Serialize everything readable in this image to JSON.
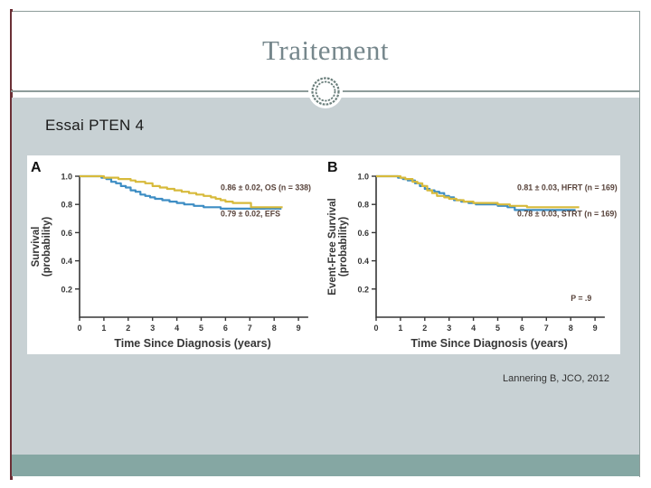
{
  "slide": {
    "title": "Traitement",
    "subtitle": "Essai PTEN 4",
    "citation": "Lannering B, JCO, 2012"
  },
  "theme": {
    "colors": {
      "accent_stripe": "#6b3036",
      "frame_line": "#8d9c9a",
      "band": "#c8d1d4",
      "footer": "#85a7a3",
      "title": "#76878c",
      "subtitle": "#1a1a1a",
      "citation": "#333333",
      "axis": "#363636",
      "annotation": "#57423a",
      "ornament": "#6b7f7c",
      "panel_bg": "#ffffff",
      "curve_yellow": "#d7ba3b",
      "curve_blue": "#3d8dc4"
    }
  },
  "chart_data": [
    {
      "type": "line",
      "subtype": "kaplan-meier-step",
      "panel_label": "A",
      "xlabel": "Time Since Diagnosis (years)",
      "ylabel_lines": [
        "Survival",
        "(probability)"
      ],
      "xlim": [
        0,
        9.4
      ],
      "ylim": [
        0,
        1.0
      ],
      "xticks": [
        0,
        1,
        2,
        3,
        4,
        5,
        6,
        7,
        8,
        9
      ],
      "yticks": [
        0.2,
        0.4,
        0.6,
        0.8,
        1.0
      ],
      "grid": false,
      "legend": "none",
      "annotations": [
        {
          "text": "0.86 ± 0.02, OS (n = 338)",
          "x": 5.8,
          "y": 0.9
        },
        {
          "text": "0.79 ± 0.02, EFS",
          "x": 5.8,
          "y": 0.715
        }
      ],
      "series": [
        {
          "name": "EFS",
          "color": "#3d8dc4",
          "points": [
            [
              0,
              1.0
            ],
            [
              0.8,
              1.0
            ],
            [
              0.9,
              0.99
            ],
            [
              1.1,
              0.98
            ],
            [
              1.3,
              0.96
            ],
            [
              1.5,
              0.95
            ],
            [
              1.7,
              0.93
            ],
            [
              1.9,
              0.92
            ],
            [
              2.1,
              0.9
            ],
            [
              2.3,
              0.89
            ],
            [
              2.5,
              0.87
            ],
            [
              2.7,
              0.86
            ],
            [
              2.9,
              0.85
            ],
            [
              3.1,
              0.84
            ],
            [
              3.4,
              0.83
            ],
            [
              3.7,
              0.82
            ],
            [
              4.0,
              0.81
            ],
            [
              4.3,
              0.8
            ],
            [
              4.7,
              0.79
            ],
            [
              5.1,
              0.78
            ],
            [
              5.8,
              0.77
            ],
            [
              8.3,
              0.77
            ]
          ]
        },
        {
          "name": "OS",
          "color": "#d7ba3b",
          "points": [
            [
              0,
              1.0
            ],
            [
              0.9,
              1.0
            ],
            [
              1.0,
              0.99
            ],
            [
              1.6,
              0.98
            ],
            [
              2.1,
              0.97
            ],
            [
              2.3,
              0.96
            ],
            [
              2.7,
              0.95
            ],
            [
              3.0,
              0.93
            ],
            [
              3.3,
              0.92
            ],
            [
              3.6,
              0.91
            ],
            [
              3.9,
              0.9
            ],
            [
              4.2,
              0.89
            ],
            [
              4.5,
              0.88
            ],
            [
              4.8,
              0.87
            ],
            [
              5.1,
              0.86
            ],
            [
              5.4,
              0.85
            ],
            [
              5.6,
              0.84
            ],
            [
              5.8,
              0.83
            ],
            [
              6.0,
              0.82
            ],
            [
              6.3,
              0.81
            ],
            [
              7.05,
              0.78
            ],
            [
              8.35,
              0.78
            ]
          ]
        }
      ]
    },
    {
      "type": "line",
      "subtype": "kaplan-meier-step",
      "panel_label": "B",
      "xlabel": "Time Since Diagnosis (years)",
      "ylabel_lines": [
        "Event-Free Survival",
        "(probability)"
      ],
      "xlim": [
        0,
        9.4
      ],
      "ylim": [
        0,
        1.0
      ],
      "xticks": [
        0,
        1,
        2,
        3,
        4,
        5,
        6,
        7,
        8,
        9
      ],
      "yticks": [
        0.2,
        0.4,
        0.6,
        0.8,
        1.0
      ],
      "grid": false,
      "legend": "none",
      "annotations": [
        {
          "text": "0.81 ± 0.03, HFRT (n = 169)",
          "x": 5.8,
          "y": 0.9
        },
        {
          "text": "0.78 ± 0.03, STRT (n = 169)",
          "x": 5.8,
          "y": 0.715
        },
        {
          "text": "P = .9",
          "x": 8.0,
          "y": 0.115
        }
      ],
      "series": [
        {
          "name": "STRT",
          "color": "#3d8dc4",
          "points": [
            [
              0,
              1.0
            ],
            [
              0.7,
              1.0
            ],
            [
              0.9,
              0.99
            ],
            [
              1.1,
              0.98
            ],
            [
              1.3,
              0.97
            ],
            [
              1.6,
              0.95
            ],
            [
              1.8,
              0.93
            ],
            [
              2.0,
              0.91
            ],
            [
              2.2,
              0.9
            ],
            [
              2.4,
              0.89
            ],
            [
              2.6,
              0.88
            ],
            [
              2.8,
              0.86
            ],
            [
              3.0,
              0.85
            ],
            [
              3.2,
              0.83
            ],
            [
              3.5,
              0.82
            ],
            [
              3.8,
              0.81
            ],
            [
              4.1,
              0.8
            ],
            [
              5.0,
              0.79
            ],
            [
              5.4,
              0.78
            ],
            [
              5.7,
              0.76
            ],
            [
              8.2,
              0.76
            ]
          ]
        },
        {
          "name": "HFRT",
          "color": "#d7ba3b",
          "points": [
            [
              0,
              1.0
            ],
            [
              0.8,
              1.0
            ],
            [
              1.0,
              0.99
            ],
            [
              1.2,
              0.98
            ],
            [
              1.5,
              0.96
            ],
            [
              1.7,
              0.95
            ],
            [
              1.9,
              0.93
            ],
            [
              2.1,
              0.9
            ],
            [
              2.3,
              0.88
            ],
            [
              2.5,
              0.86
            ],
            [
              2.8,
              0.85
            ],
            [
              3.0,
              0.84
            ],
            [
              3.3,
              0.83
            ],
            [
              3.6,
              0.82
            ],
            [
              4.0,
              0.81
            ],
            [
              5.0,
              0.8
            ],
            [
              5.5,
              0.79
            ],
            [
              6.2,
              0.78
            ],
            [
              8.35,
              0.78
            ]
          ]
        }
      ]
    }
  ]
}
